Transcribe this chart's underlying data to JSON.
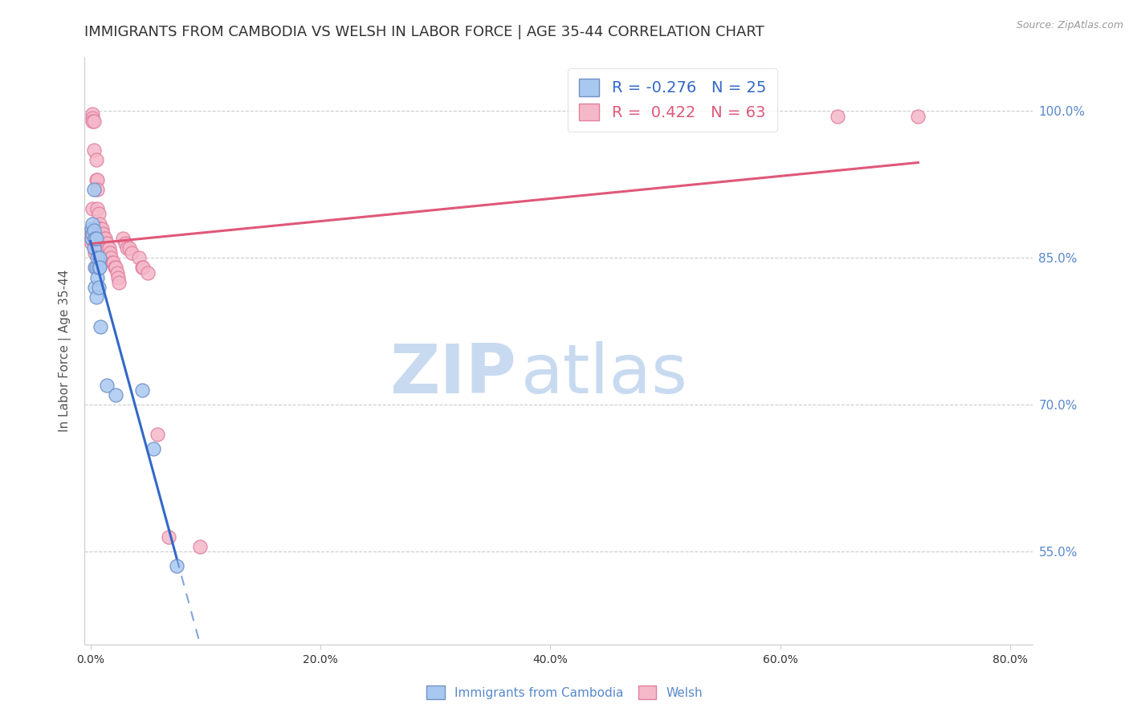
{
  "title": "IMMIGRANTS FROM CAMBODIA VS WELSH IN LABOR FORCE | AGE 35-44 CORRELATION CHART",
  "source": "Source: ZipAtlas.com",
  "ylabel": "In Labor Force | Age 35-44",
  "xlabel_ticks": [
    "0.0%",
    "20.0%",
    "40.0%",
    "60.0%",
    "80.0%"
  ],
  "xlabel_tick_vals": [
    0.0,
    0.2,
    0.4,
    0.6,
    0.8
  ],
  "ylabel_ticks": [
    "55.0%",
    "70.0%",
    "85.0%",
    "100.0%"
  ],
  "ylabel_tick_vals": [
    0.55,
    0.7,
    0.85,
    1.0
  ],
  "xlim": [
    -0.005,
    0.82
  ],
  "ylim": [
    0.455,
    1.055
  ],
  "cambodia_color": "#a8c8f0",
  "welsh_color": "#f5b8c8",
  "cambodia_edge_color": "#7090c8",
  "welsh_edge_color": "#e080a0",
  "cambodia_line_color": "#3368c8",
  "welsh_line_color": "#e05878",
  "legend_R_cambodia": "-0.276",
  "legend_N_cambodia": "25",
  "legend_R_welsh": "0.422",
  "legend_N_welsh": "63",
  "watermark_zip": "ZIP",
  "watermark_atlas": "atlas",
  "grid_color": "#cccccc",
  "background_color": "#ffffff",
  "right_axis_color": "#5888cc",
  "title_fontsize": 13,
  "label_fontsize": 11,
  "tick_fontsize": 10,
  "cambodia_x": [
    0.001,
    0.001,
    0.002,
    0.002,
    0.003,
    0.003,
    0.003,
    0.004,
    0.004,
    0.004,
    0.005,
    0.005,
    0.005,
    0.006,
    0.006,
    0.007,
    0.007,
    0.008,
    0.008,
    0.009,
    0.014,
    0.022,
    0.045,
    0.055,
    0.075
  ],
  "cambodia_y": [
    0.88,
    0.87,
    0.885,
    0.875,
    0.92,
    0.878,
    0.86,
    0.87,
    0.84,
    0.82,
    0.87,
    0.84,
    0.81,
    0.85,
    0.83,
    0.84,
    0.82,
    0.85,
    0.84,
    0.78,
    0.72,
    0.71,
    0.715,
    0.655,
    0.535
  ],
  "welsh_x": [
    0.001,
    0.001,
    0.001,
    0.002,
    0.002,
    0.002,
    0.002,
    0.002,
    0.003,
    0.003,
    0.003,
    0.003,
    0.004,
    0.004,
    0.004,
    0.004,
    0.005,
    0.005,
    0.005,
    0.005,
    0.006,
    0.006,
    0.006,
    0.006,
    0.007,
    0.007,
    0.007,
    0.008,
    0.008,
    0.008,
    0.009,
    0.01,
    0.01,
    0.011,
    0.011,
    0.012,
    0.013,
    0.014,
    0.015,
    0.016,
    0.017,
    0.018,
    0.019,
    0.02,
    0.021,
    0.022,
    0.023,
    0.024,
    0.025,
    0.028,
    0.03,
    0.032,
    0.034,
    0.036,
    0.042,
    0.045,
    0.046,
    0.05,
    0.058,
    0.068,
    0.095,
    0.65,
    0.72
  ],
  "welsh_y": [
    0.875,
    0.87,
    0.865,
    0.997,
    0.993,
    0.99,
    0.9,
    0.875,
    0.99,
    0.96,
    0.875,
    0.865,
    0.88,
    0.875,
    0.87,
    0.855,
    0.95,
    0.93,
    0.875,
    0.86,
    0.93,
    0.92,
    0.9,
    0.875,
    0.895,
    0.88,
    0.865,
    0.885,
    0.875,
    0.86,
    0.88,
    0.88,
    0.86,
    0.875,
    0.86,
    0.87,
    0.87,
    0.865,
    0.86,
    0.86,
    0.855,
    0.85,
    0.845,
    0.845,
    0.84,
    0.84,
    0.835,
    0.83,
    0.825,
    0.87,
    0.865,
    0.86,
    0.86,
    0.855,
    0.85,
    0.84,
    0.84,
    0.835,
    0.67,
    0.565,
    0.555,
    0.995,
    0.995
  ]
}
